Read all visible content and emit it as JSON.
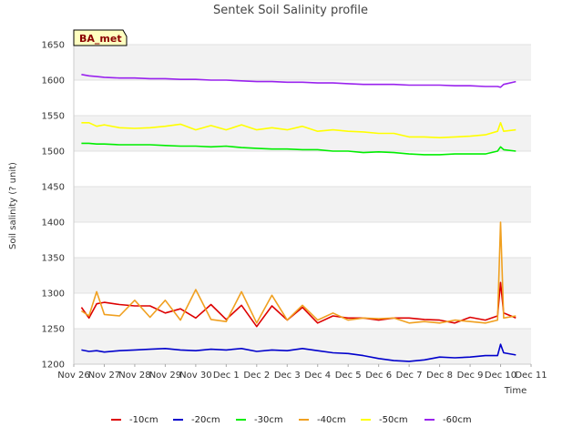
{
  "chart_data": {
    "type": "line",
    "title": "Sentek Soil Salinity profile",
    "xlabel": "Time",
    "ylabel": "Soil salinity (? unit)",
    "badge": "BA_met",
    "x_tick_labels": [
      "Nov 26",
      "Nov 27",
      "Nov 28",
      "Nov 29",
      "Nov 30",
      "Dec 1",
      "Dec 2",
      "Dec 3",
      "Dec 4",
      "Dec 5",
      "Dec 6",
      "Dec 7",
      "Dec 8",
      "Dec 9",
      "Dec 10",
      "Dec 11"
    ],
    "x_range_days": [
      0,
      15
    ],
    "ylim": [
      1200,
      1650
    ],
    "y_ticks": [
      1200,
      1250,
      1300,
      1350,
      1400,
      1450,
      1500,
      1550,
      1600,
      1650
    ],
    "grid": true,
    "legend_position": "bottom",
    "x": [
      0.25,
      0.5,
      0.75,
      1.0,
      1.5,
      2.0,
      2.5,
      3.0,
      3.5,
      4.0,
      4.5,
      5.0,
      5.5,
      6.0,
      6.5,
      7.0,
      7.5,
      8.0,
      8.5,
      9.0,
      9.5,
      10.0,
      10.5,
      11.0,
      11.5,
      12.0,
      12.5,
      13.0,
      13.5,
      13.9,
      14.0,
      14.1,
      14.5
    ],
    "series": [
      {
        "name": "-10cm",
        "color": "#dd0000",
        "values": [
          1280,
          1265,
          1285,
          1287,
          1284,
          1282,
          1282,
          1272,
          1278,
          1265,
          1284,
          1263,
          1283,
          1253,
          1282,
          1262,
          1280,
          1258,
          1268,
          1265,
          1265,
          1262,
          1265,
          1265,
          1263,
          1262,
          1258,
          1266,
          1262,
          1268,
          1315,
          1272,
          1265
        ]
      },
      {
        "name": "-20cm",
        "color": "#0000cc",
        "values": [
          1220,
          1218,
          1219,
          1217,
          1219,
          1220,
          1221,
          1222,
          1220,
          1219,
          1221,
          1220,
          1222,
          1218,
          1220,
          1219,
          1222,
          1219,
          1216,
          1215,
          1212,
          1208,
          1205,
          1204,
          1206,
          1210,
          1209,
          1210,
          1212,
          1212,
          1228,
          1216,
          1213
        ]
      },
      {
        "name": "-30cm",
        "color": "#00ee00",
        "values": [
          1511,
          1511,
          1510,
          1510,
          1509,
          1509,
          1509,
          1508,
          1507,
          1507,
          1506,
          1507,
          1505,
          1504,
          1503,
          1503,
          1502,
          1502,
          1500,
          1500,
          1498,
          1499,
          1498,
          1496,
          1495,
          1495,
          1496,
          1496,
          1496,
          1500,
          1506,
          1502,
          1500
        ]
      },
      {
        "name": "-40cm",
        "color": "#f0a020",
        "values": [
          1275,
          1268,
          1302,
          1270,
          1268,
          1290,
          1266,
          1290,
          1262,
          1305,
          1263,
          1260,
          1302,
          1258,
          1297,
          1262,
          1283,
          1262,
          1272,
          1262,
          1265,
          1264,
          1265,
          1258,
          1260,
          1258,
          1262,
          1260,
          1258,
          1262,
          1400,
          1265,
          1268
        ]
      },
      {
        "name": "-50cm",
        "color": "#ffff00",
        "values": [
          1540,
          1540,
          1535,
          1537,
          1533,
          1532,
          1533,
          1535,
          1538,
          1530,
          1536,
          1530,
          1537,
          1530,
          1533,
          1530,
          1535,
          1528,
          1530,
          1528,
          1527,
          1525,
          1525,
          1520,
          1520,
          1519,
          1520,
          1521,
          1523,
          1528,
          1540,
          1528,
          1530
        ]
      },
      {
        "name": "-60cm",
        "color": "#9922ee",
        "values": [
          1608,
          1606,
          1605,
          1604,
          1603,
          1603,
          1602,
          1602,
          1601,
          1601,
          1600,
          1600,
          1599,
          1598,
          1598,
          1597,
          1597,
          1596,
          1596,
          1595,
          1594,
          1594,
          1594,
          1593,
          1593,
          1593,
          1592,
          1592,
          1591,
          1591,
          1590,
          1594,
          1598
        ]
      }
    ]
  }
}
